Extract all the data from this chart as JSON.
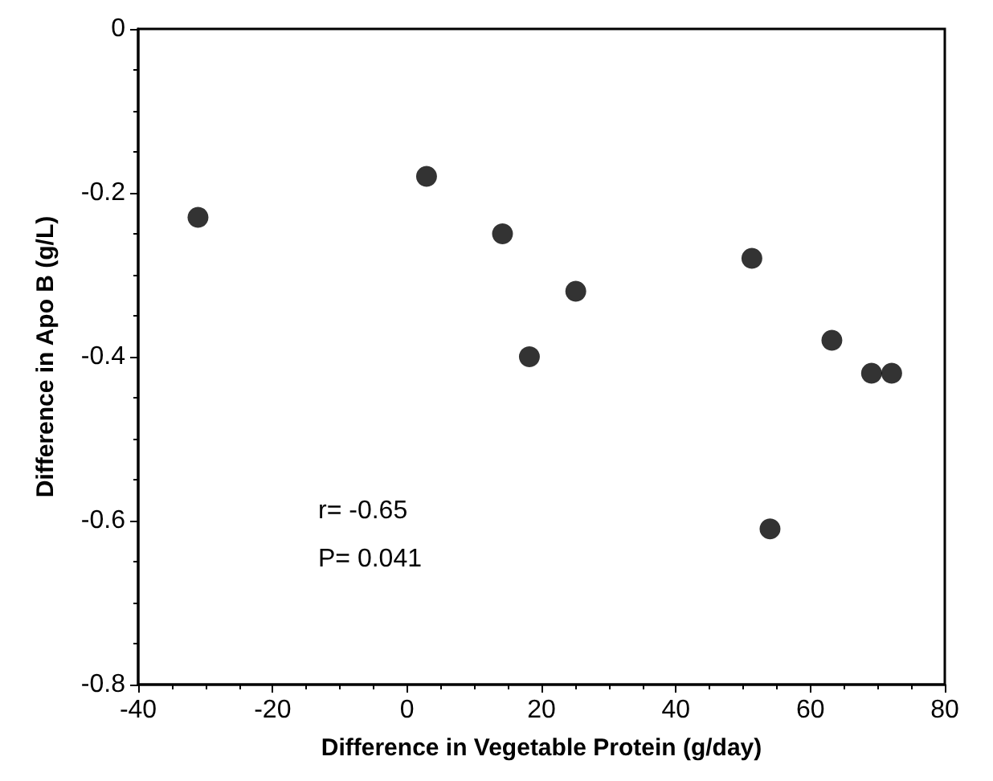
{
  "chart_data": {
    "type": "scatter",
    "xlabel": "Difference in Vegetable Protein (g/day)",
    "ylabel": "Difference in Apo B (g/L)",
    "x": [
      -31.1,
      2.9,
      14.2,
      18.2,
      25.1,
      51.3,
      54.0,
      63.2,
      69.1,
      72.1
    ],
    "values": [
      -0.23,
      -0.18,
      -0.25,
      -0.4,
      -0.32,
      -0.28,
      -0.61,
      -0.38,
      -0.42,
      -0.42
    ],
    "color": "#000000",
    "marker": "circle",
    "xlim": [
      -40,
      80
    ],
    "xticks": [
      -40,
      -20,
      0,
      20,
      40,
      60,
      80
    ],
    "ylim": [
      -0.8,
      0
    ],
    "yticks": [
      -0.8,
      -0.6,
      -0.4,
      -0.2,
      0
    ],
    "grid": false,
    "annotations": [
      "r= -0.65",
      "P= 0.041"
    ]
  }
}
